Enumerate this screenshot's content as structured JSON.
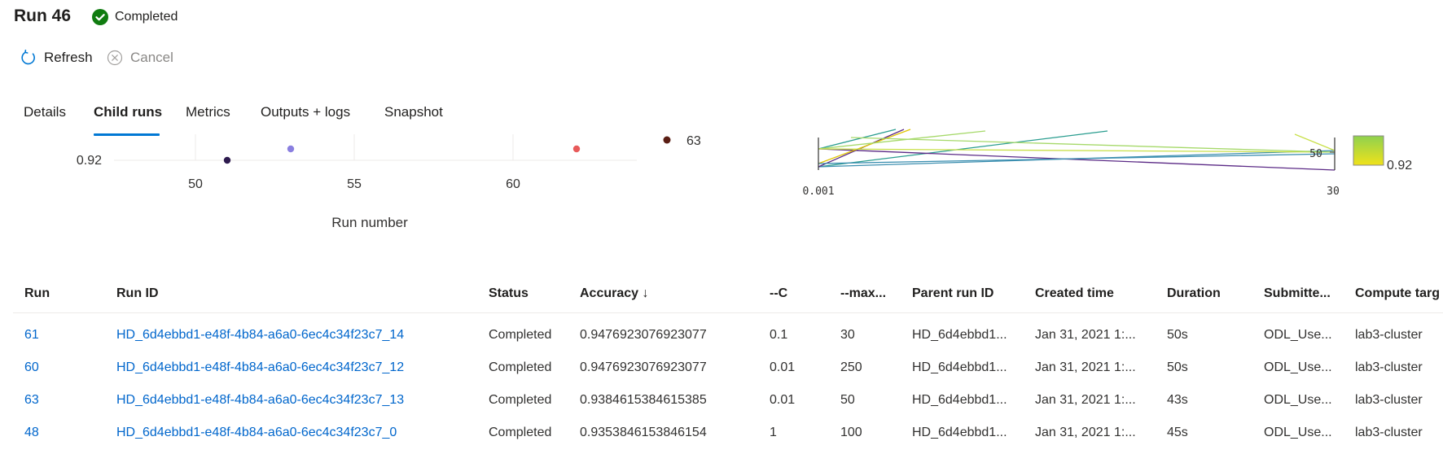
{
  "header": {
    "title": "Run 46",
    "status": "Completed",
    "status_color": "#107c10"
  },
  "commands": {
    "refresh_label": "Refresh",
    "cancel_label": "Cancel",
    "refresh_icon": "refresh-icon",
    "cancel_icon": "cancel-icon"
  },
  "tabs": [
    {
      "label": "Details",
      "active": false
    },
    {
      "label": "Child runs",
      "active": true
    },
    {
      "label": "Metrics",
      "active": false
    },
    {
      "label": "Outputs + logs",
      "active": false
    },
    {
      "label": "Snapshot",
      "active": false
    }
  ],
  "accent_color": "#0078d4",
  "link_color": "#0066cc",
  "chart_data": [
    {
      "type": "scatter",
      "xlabel": "Run number",
      "ylabel": "",
      "x_ticks": [
        "50",
        "55",
        "60"
      ],
      "y_ticks": [
        "0.92"
      ],
      "points": [
        {
          "x": 51,
          "y": 0.92,
          "color": "#2d1a4e"
        },
        {
          "x": 53,
          "y": 0.925,
          "color": "#8a7fe0"
        },
        {
          "x": 62,
          "y": 0.925,
          "color": "#e85a5a"
        }
      ],
      "legend": [
        {
          "label": "63",
          "color": "#5a1e14"
        }
      ],
      "grid": true
    },
    {
      "type": "parallel_coordinates",
      "axis_ticks": [
        "0.001",
        "30"
      ],
      "mid_tick": "50",
      "colorbar_label": "0.92",
      "line_colors": [
        "#2a9d8f",
        "#4a3b8c",
        "#a6d96a",
        "#c9e04a",
        "#e0c400",
        "#5b2a86",
        "#3c8fb0"
      ]
    }
  ],
  "table": {
    "columns": [
      "Run",
      "Run ID",
      "Status",
      "Accuracy ↓",
      "--C",
      "--max...",
      "Parent run ID",
      "Created time",
      "Duration",
      "Submitte...",
      "Compute targ"
    ],
    "rows": [
      [
        "61",
        "HD_6d4ebbd1-e48f-4b84-a6a0-6ec4c34f23c7_14",
        "Completed",
        "0.9476923076923077",
        "0.1",
        "30",
        "HD_6d4ebbd1...",
        "Jan 31, 2021 1:...",
        "50s",
        "ODL_Use...",
        "lab3-cluster"
      ],
      [
        "60",
        "HD_6d4ebbd1-e48f-4b84-a6a0-6ec4c34f23c7_12",
        "Completed",
        "0.9476923076923077",
        "0.01",
        "250",
        "HD_6d4ebbd1...",
        "Jan 31, 2021 1:...",
        "50s",
        "ODL_Use...",
        "lab3-cluster"
      ],
      [
        "63",
        "HD_6d4ebbd1-e48f-4b84-a6a0-6ec4c34f23c7_13",
        "Completed",
        "0.9384615384615385",
        "0.01",
        "50",
        "HD_6d4ebbd1...",
        "Jan 31, 2021 1:...",
        "43s",
        "ODL_Use...",
        "lab3-cluster"
      ],
      [
        "48",
        "HD_6d4ebbd1-e48f-4b84-a6a0-6ec4c34f23c7_0",
        "Completed",
        "0.9353846153846154",
        "1",
        "100",
        "HD_6d4ebbd1...",
        "Jan 31, 2021 1:...",
        "45s",
        "ODL_Use...",
        "lab3-cluster"
      ]
    ]
  }
}
